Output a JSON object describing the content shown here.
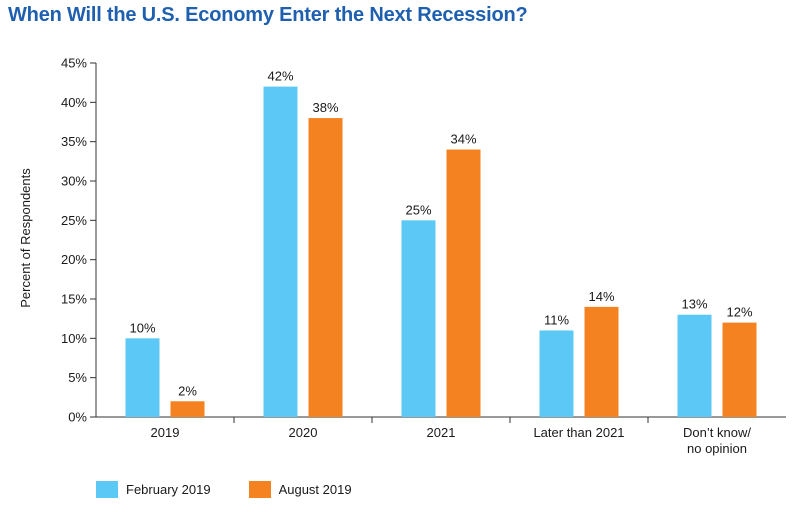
{
  "chart_data": {
    "type": "bar",
    "title": "When Will the U.S. Economy Enter the Next Recession?",
    "ylabel": "Percent of Respondents",
    "xlabel": "",
    "ylim": [
      0,
      45
    ],
    "yticks": [
      "0%",
      "5%",
      "10%",
      "15%",
      "20%",
      "25%",
      "30%",
      "35%",
      "40%",
      "45%"
    ],
    "categories": [
      "2019",
      "2020",
      "2021",
      "Later than 2021",
      "Don’t know/\nno opinion"
    ],
    "series": [
      {
        "name": "February 2019",
        "color": "#5bc8f5",
        "values": [
          10,
          42,
          25,
          11,
          13
        ]
      },
      {
        "name": "August 2019",
        "color": "#f58220",
        "values": [
          2,
          38,
          34,
          14,
          12
        ]
      }
    ],
    "grid": false,
    "legend_position": "bottom-left"
  }
}
